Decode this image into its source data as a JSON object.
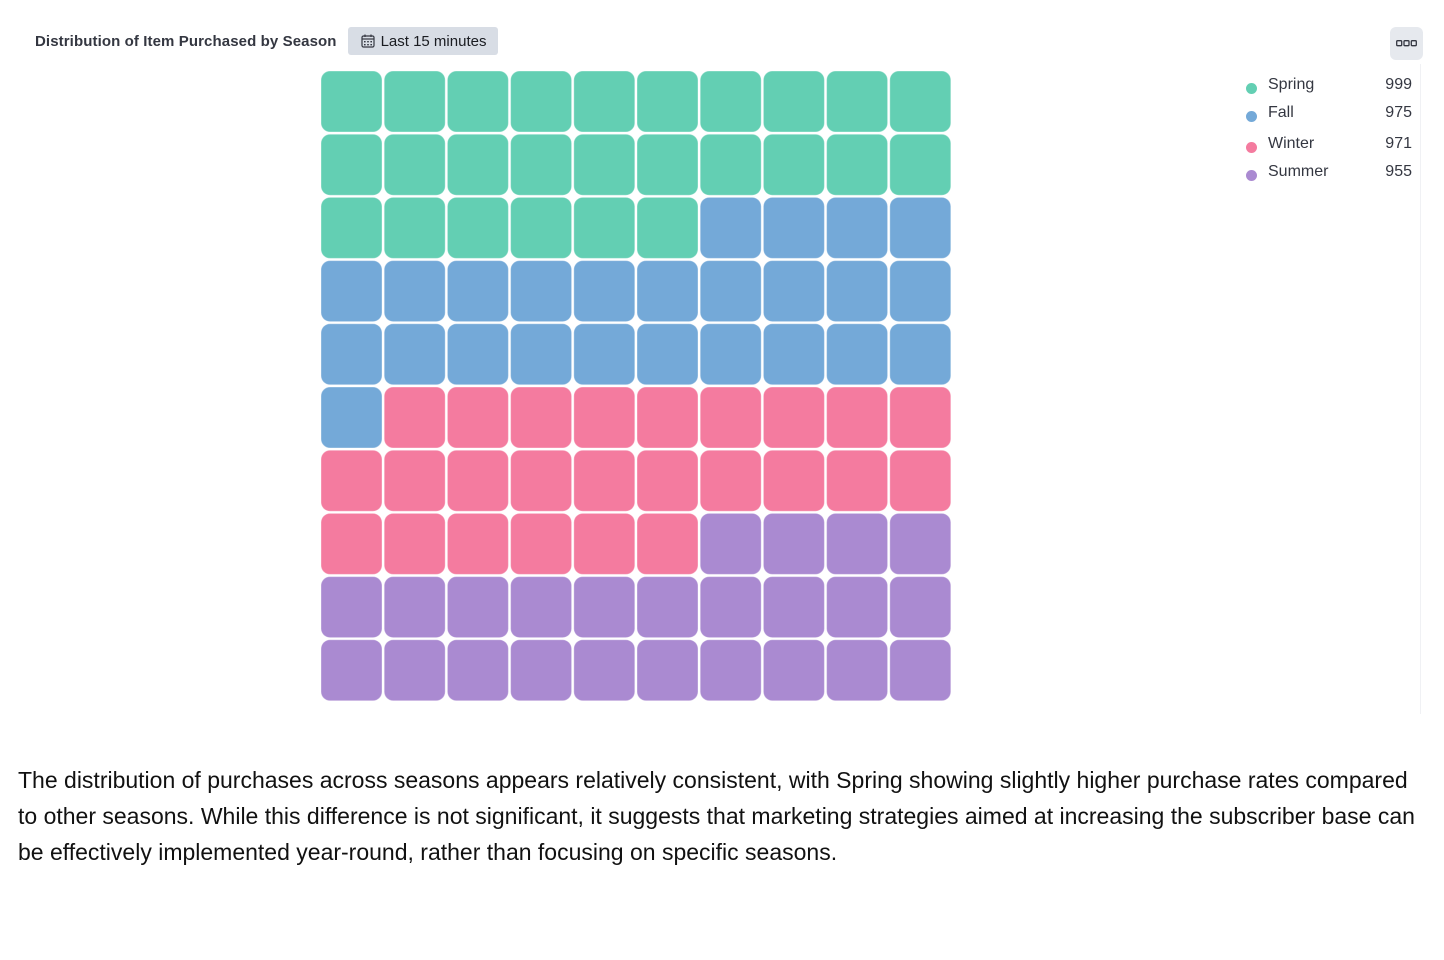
{
  "panel": {
    "title": "Distribution of Item Purchased by Season",
    "time_range_label": "Last 15 minutes",
    "time_range_icon": "calendar-icon",
    "menu_icon": "more-options-icon"
  },
  "chart_data": {
    "type": "waffle",
    "grid": {
      "rows": 10,
      "columns": 10
    },
    "series": [
      {
        "name": "Spring",
        "value": 999,
        "cells": 26,
        "color": "#63cfb3"
      },
      {
        "name": "Fall",
        "value": 975,
        "cells": 25,
        "color": "#74a9d8"
      },
      {
        "name": "Winter",
        "value": 971,
        "cells": 25,
        "color": "#f47b9f"
      },
      {
        "name": "Summer",
        "value": 955,
        "cells": 24,
        "color": "#aa8ad1"
      }
    ],
    "legend_placement": "top-right"
  },
  "legend": [
    {
      "label": "Spring",
      "value": "999",
      "color": "#63cfb3"
    },
    {
      "label": "Fall",
      "value": "975",
      "color": "#74a9d8"
    },
    {
      "label": "Winter",
      "value": "971",
      "color": "#f47b9f"
    },
    {
      "label": "Summer",
      "value": "955",
      "color": "#aa8ad1"
    }
  ],
  "insight": "The distribution of purchases across seasons appears relatively consistent, with Spring showing slightly higher purchase rates compared to other seasons. While this difference is not significant, it suggests that marketing strategies aimed at increasing the subscriber base can be effectively implemented year-round, rather than focusing on specific seasons."
}
